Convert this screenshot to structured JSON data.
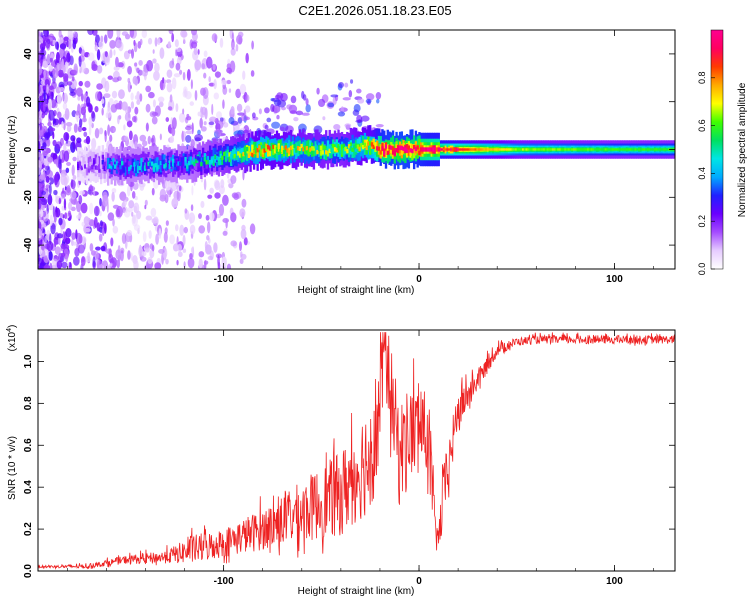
{
  "title": "C2E1.2026.051.18.23.E05",
  "chart_data": [
    {
      "type": "heatmap",
      "xlabel": "Height of straight line (km)",
      "ylabel": "Frequency (Hz)",
      "xlim": [
        -195,
        131
      ],
      "ylim": [
        -50,
        50
      ],
      "x_ticks": [
        -100,
        0,
        100
      ],
      "x_tick_labels": [
        "-100",
        "0",
        "100"
      ],
      "y_ticks": [
        -40,
        -20,
        0,
        20,
        40
      ],
      "y_tick_labels": [
        "-40",
        "-20",
        "0",
        "20",
        "40"
      ],
      "colorbar": {
        "label": "Normalized spectral amplitude",
        "range": [
          0.0,
          1.0
        ],
        "ticks": [
          0.0,
          0.2,
          0.4,
          0.6,
          0.8
        ],
        "tick_labels": [
          "0.0",
          "0.2",
          "0.4",
          "0.6",
          "0.8"
        ],
        "colormap": [
          "#ffffff",
          "#e6ccff",
          "#a54cff",
          "#6a00ff",
          "#2020ff",
          "#00aaff",
          "#00e5e5",
          "#00e060",
          "#40ff00",
          "#ffff00",
          "#ffaa00",
          "#ff3b00",
          "#ff0060",
          "#ff0090"
        ]
      },
      "ridge": {
        "description": "dominant frequency band vs height",
        "x": [
          -180,
          -150,
          -120,
          -100,
          -80,
          -60,
          -40,
          -25,
          -20,
          -10,
          0,
          20,
          50,
          100,
          131
        ],
        "center_hz": [
          -6,
          -7,
          -6,
          -3,
          0,
          0,
          0,
          2,
          0,
          0,
          0,
          0,
          0,
          0,
          0
        ],
        "amplitude": [
          0.15,
          0.35,
          0.35,
          0.5,
          0.7,
          0.6,
          0.55,
          0.7,
          0.9,
          0.95,
          0.9,
          0.8,
          0.6,
          0.55,
          0.55
        ]
      }
    },
    {
      "type": "line",
      "xlabel": "Height of straight line (km)",
      "ylabel": "SNR (10 * v/v)",
      "y_scale_label": "(x10",
      "y_scale_exponent": "4",
      "xlim": [
        -195,
        131
      ],
      "ylim": [
        0,
        1.15
      ],
      "x_ticks": [
        -100,
        0,
        100
      ],
      "x_tick_labels": [
        "-100",
        "0",
        "100"
      ],
      "y_ticks": [
        0.0,
        0.2,
        0.4,
        0.6,
        0.8,
        1.0
      ],
      "y_tick_labels": [
        "0.0",
        "0.2",
        "0.4",
        "0.6",
        "0.8",
        "1.0"
      ],
      "color": "#ee2222",
      "series": [
        {
          "name": "SNR",
          "x": [
            -195,
            -170,
            -150,
            -130,
            -115,
            -100,
            -80,
            -60,
            -40,
            -25,
            -20,
            -18,
            -10,
            -5,
            0,
            5,
            8,
            10,
            12,
            20,
            30,
            40,
            50,
            60,
            80,
            100,
            131
          ],
          "y": [
            0.02,
            0.02,
            0.05,
            0.06,
            0.09,
            0.12,
            0.18,
            0.25,
            0.33,
            0.5,
            0.7,
            1.05,
            0.5,
            0.6,
            0.65,
            0.6,
            0.2,
            0.12,
            0.3,
            0.75,
            0.9,
            1.05,
            1.09,
            1.1,
            1.1,
            1.1,
            1.1
          ],
          "noise": [
            0.005,
            0.01,
            0.02,
            0.03,
            0.07,
            0.07,
            0.1,
            0.15,
            0.2,
            0.28,
            0.3,
            0.2,
            0.25,
            0.25,
            0.2,
            0.2,
            0.1,
            0.08,
            0.15,
            0.1,
            0.05,
            0.03,
            0.02,
            0.02,
            0.02,
            0.02,
            0.02
          ]
        }
      ]
    }
  ]
}
